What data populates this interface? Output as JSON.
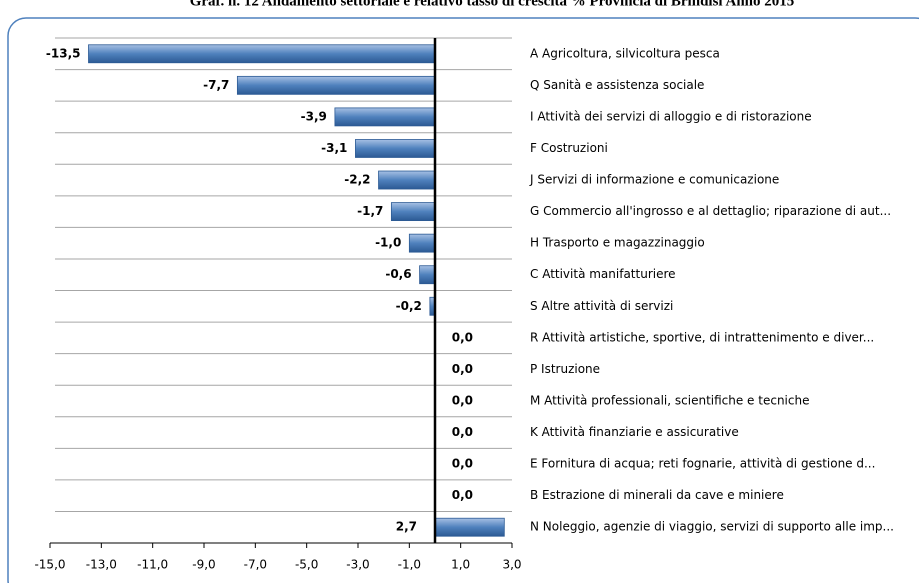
{
  "chart_data": {
    "type": "barh",
    "title": "Graf. n. 12 Andamento settoriale e relativo tasso di crescita % Provincia di Brindisi Anno 2015",
    "categories": [
      "A Agricoltura, silvicoltura pesca",
      "Q Sanità e assistenza sociale",
      "I Attività dei servizi di alloggio e di ristorazione",
      "F Costruzioni",
      "J Servizi di informazione e comunicazione",
      "G Commercio all'ingrosso e al dettaglio; riparazione di aut...",
      "H Trasporto e magazzinaggio",
      "C Attività manifatturiere",
      "S Altre attività di servizi",
      "R Attività artistiche, sportive, di intrattenimento e diver...",
      "P Istruzione",
      "M Attività professionali, scientifiche e tecniche",
      "K Attività finanziarie e assicurative",
      "E Fornitura di acqua; reti fognarie, attività di gestione d...",
      "B Estrazione di minerali da cave e miniere",
      "N Noleggio, agenzie di viaggio, servizi di supporto alle imp..."
    ],
    "values": [
      -13.5,
      -7.7,
      -3.9,
      -3.1,
      -2.2,
      -1.7,
      -1.0,
      -0.6,
      -0.2,
      0.0,
      0.0,
      0.0,
      0.0,
      0.0,
      0.0,
      2.7
    ],
    "value_labels": [
      "-13,5",
      "-7,7",
      "-3,9",
      "-3,1",
      "-2,2",
      "-1,7",
      "-1,0",
      "-0,6",
      "-0,2",
      "0,0",
      "0,0",
      "0,0",
      "0,0",
      "0,0",
      "0,0",
      "2,7"
    ],
    "color": "#4f81bd",
    "xlim": [
      -15,
      3
    ],
    "xticks": [
      {
        "value": -15,
        "label": "-15,0"
      },
      {
        "value": -13,
        "label": "-13,0"
      },
      {
        "value": -11,
        "label": "-11,0"
      },
      {
        "value": -9,
        "label": "-9,0"
      },
      {
        "value": -7,
        "label": "-7,0"
      },
      {
        "value": -5,
        "label": "-5,0"
      },
      {
        "value": -3,
        "label": "-3,0"
      },
      {
        "value": -1,
        "label": "-1,0"
      },
      {
        "value": 1,
        "label": "1,0"
      },
      {
        "value": 3,
        "label": "3,0"
      }
    ],
    "grid": true
  }
}
